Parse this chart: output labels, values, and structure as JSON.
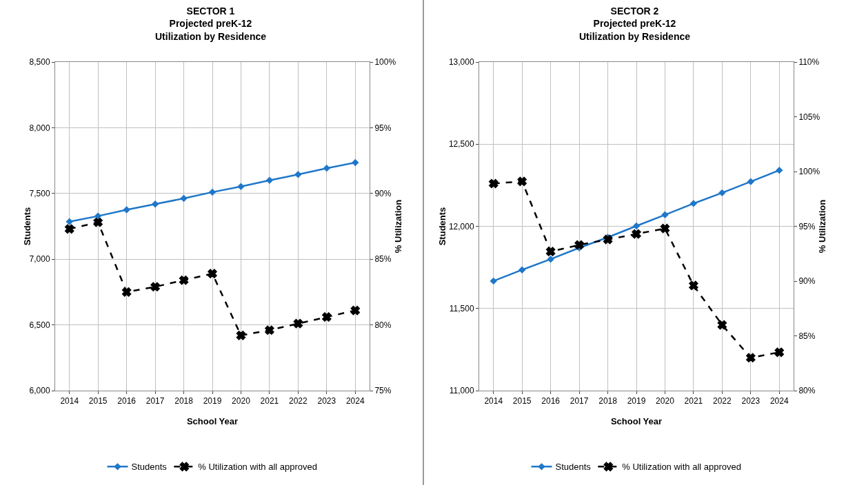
{
  "chart_data": [
    {
      "type": "line",
      "title": "SECTOR 1\nProjected preK-12\nUtilization by Residence",
      "xlabel": "School Year",
      "ylabel": "Students",
      "y2label": "% Utilization",
      "categories": [
        "2014",
        "2015",
        "2016",
        "2017",
        "2018",
        "2019",
        "2020",
        "2021",
        "2022",
        "2023",
        "2024"
      ],
      "series": [
        {
          "name": "Students",
          "color": "#1f77c9",
          "marker": "diamond",
          "line_style": "solid",
          "values": [
            7285,
            7328,
            7376,
            7419,
            7462,
            7510,
            7553,
            7600,
            7644,
            7692,
            7735
          ]
        },
        {
          "name": "% Utilization with all approved",
          "color": "#000000",
          "marker": "cross",
          "line_style": "dashed",
          "axis": "y2",
          "values": [
            87.3,
            87.8,
            82.5,
            82.9,
            83.4,
            83.9,
            79.2,
            79.6,
            80.1,
            80.6,
            81.1
          ]
        }
      ],
      "ylim": [
        6000,
        8500
      ],
      "yticks": [
        {
          "value": 6000,
          "label": "6,000"
        },
        {
          "value": 6500,
          "label": "6,500"
        },
        {
          "value": 7000,
          "label": "7,000"
        },
        {
          "value": 7500,
          "label": "7,500"
        },
        {
          "value": 8000,
          "label": "8,000"
        },
        {
          "value": 8500,
          "label": "8,500"
        }
      ],
      "y2lim": [
        75,
        100
      ],
      "y2ticks": [
        {
          "value": 75,
          "label": "75%"
        },
        {
          "value": 80,
          "label": "80%"
        },
        {
          "value": 85,
          "label": "85%"
        },
        {
          "value": 90,
          "label": "90%"
        },
        {
          "value": 95,
          "label": "95%"
        },
        {
          "value": 100,
          "label": "100%"
        }
      ],
      "grid": true,
      "legend": "bottom"
    },
    {
      "type": "line",
      "title": "SECTOR 2\nProjected preK-12\nUtilization by Residence",
      "xlabel": "School Year",
      "ylabel": "Students",
      "y2label": "% Utilization",
      "categories": [
        "2014",
        "2015",
        "2016",
        "2017",
        "2018",
        "2019",
        "2020",
        "2021",
        "2022",
        "2023",
        "2024"
      ],
      "series": [
        {
          "name": "Students",
          "color": "#1f77c9",
          "marker": "diamond",
          "line_style": "solid",
          "values": [
            11667,
            11735,
            11800,
            11869,
            11933,
            12002,
            12070,
            12139,
            12204,
            12272,
            12341
          ]
        },
        {
          "name": "% Utilization with all approved",
          "color": "#000000",
          "marker": "cross",
          "line_style": "dashed",
          "axis": "y2",
          "values": [
            98.9,
            99.1,
            92.7,
            93.3,
            93.8,
            94.3,
            94.8,
            89.6,
            86.0,
            83.0,
            83.5
          ]
        }
      ],
      "ylim": [
        11000,
        13000
      ],
      "yticks": [
        {
          "value": 11000,
          "label": "11,000"
        },
        {
          "value": 11500,
          "label": "11,500"
        },
        {
          "value": 12000,
          "label": "12,000"
        },
        {
          "value": 12500,
          "label": "12,500"
        },
        {
          "value": 13000,
          "label": "13,000"
        }
      ],
      "y2lim": [
        80,
        110
      ],
      "y2ticks": [
        {
          "value": 80,
          "label": "80%"
        },
        {
          "value": 85,
          "label": "85%"
        },
        {
          "value": 90,
          "label": "90%"
        },
        {
          "value": 95,
          "label": "95%"
        },
        {
          "value": 100,
          "label": "100%"
        },
        {
          "value": 105,
          "label": "105%"
        },
        {
          "value": 110,
          "label": "110%"
        }
      ],
      "grid": true,
      "legend": "bottom"
    }
  ]
}
